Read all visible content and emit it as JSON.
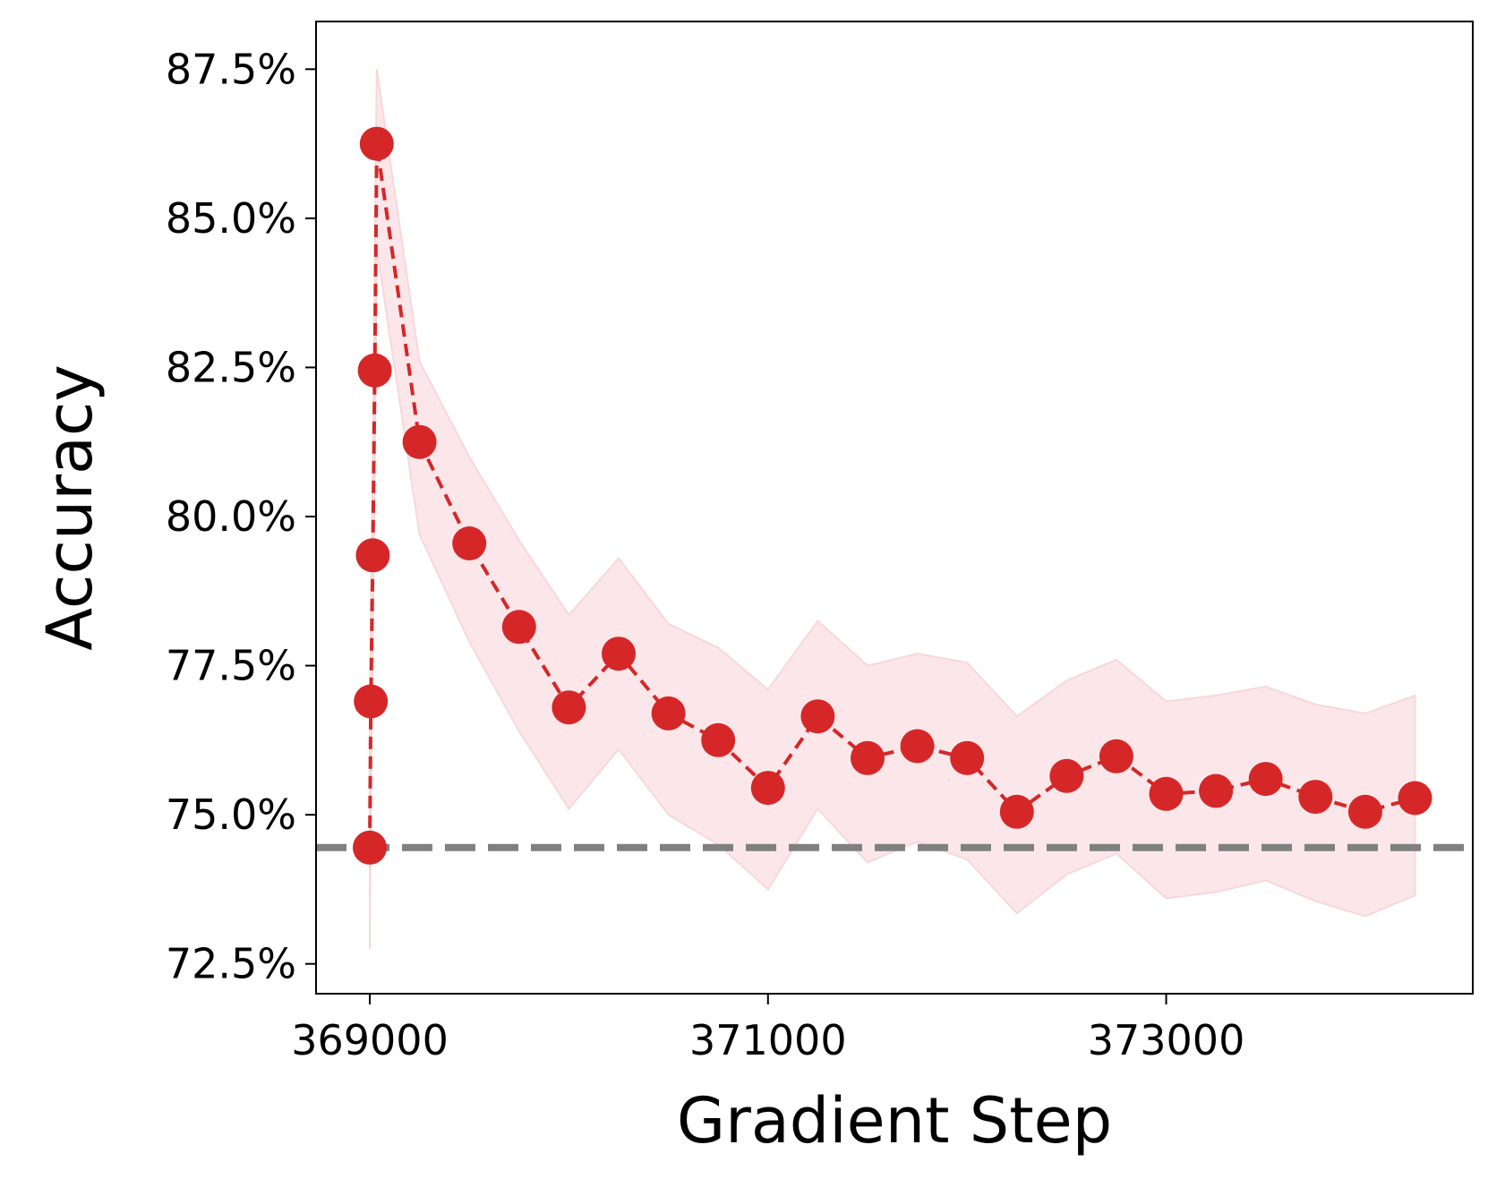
{
  "chart_data": {
    "type": "line",
    "title": "",
    "xlabel": "Gradient Step",
    "ylabel": "Accuracy",
    "xlim": [
      368730,
      374540
    ],
    "ylim": [
      72.0,
      88.3
    ],
    "x_ticks": [
      369000,
      371000,
      373000
    ],
    "x_tick_labels": [
      "369000",
      "371000",
      "373000"
    ],
    "y_ticks": [
      72.5,
      75.0,
      77.5,
      80.0,
      82.5,
      85.0,
      87.5
    ],
    "y_tick_labels": [
      "72.5%",
      "75.0%",
      "77.5%",
      "80.0%",
      "82.5%",
      "85.0%",
      "87.5%"
    ],
    "grid": false,
    "baseline": {
      "y": 74.45,
      "color": "#808080",
      "style": "dashed"
    },
    "series": [
      {
        "color": "#d62728",
        "band_color": "#f8d7da",
        "line_style": "dashed",
        "marker": "circle",
        "x": [
          369000,
          369005,
          369015,
          369025,
          369035,
          369250,
          369500,
          369750,
          370000,
          370250,
          370500,
          370750,
          371000,
          371250,
          371500,
          371750,
          372000,
          372250,
          372500,
          372750,
          373000,
          373250,
          373500,
          373750,
          374000,
          374250
        ],
        "y": [
          74.45,
          76.9,
          79.35,
          82.45,
          86.25,
          81.25,
          79.55,
          78.15,
          76.8,
          77.7,
          76.7,
          76.25,
          75.45,
          76.65,
          75.95,
          76.15,
          75.95,
          75.05,
          75.65,
          75.98,
          75.35,
          75.4,
          75.6,
          75.3,
          75.05,
          75.28
        ],
        "lower": [
          72.75,
          75.3,
          77.9,
          80.8,
          84.5,
          79.7,
          77.9,
          76.4,
          75.1,
          76.1,
          75.0,
          74.5,
          73.75,
          75.1,
          74.2,
          74.55,
          74.25,
          73.35,
          74.0,
          74.35,
          73.6,
          73.7,
          73.9,
          73.55,
          73.3,
          73.65
        ],
        "upper": [
          76.2,
          78.5,
          80.9,
          84.0,
          87.5,
          82.6,
          81.0,
          79.6,
          78.35,
          79.3,
          78.2,
          77.8,
          77.1,
          78.25,
          77.5,
          77.7,
          77.55,
          76.65,
          77.25,
          77.6,
          76.9,
          77.0,
          77.15,
          76.85,
          76.7,
          77.0
        ]
      }
    ]
  }
}
